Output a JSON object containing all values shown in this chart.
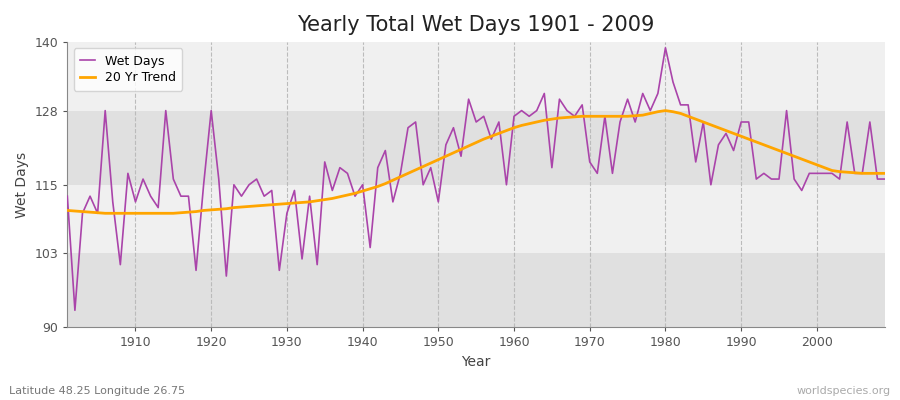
{
  "title": "Yearly Total Wet Days 1901 - 2009",
  "xlabel": "Year",
  "ylabel": "Wet Days",
  "subtitle": "Latitude 48.25 Longitude 26.75",
  "watermark": "worldspecies.org",
  "ylim": [
    90,
    140
  ],
  "yticks": [
    90,
    103,
    115,
    128,
    140
  ],
  "line_color": "#AA44AA",
  "trend_color": "#FFA500",
  "bg_color": "#FFFFFF",
  "band_color_light": "#F0F0F0",
  "band_color_dark": "#E0E0E0",
  "years": [
    1901,
    1902,
    1903,
    1904,
    1905,
    1906,
    1907,
    1908,
    1909,
    1910,
    1911,
    1912,
    1913,
    1914,
    1915,
    1916,
    1917,
    1918,
    1919,
    1920,
    1921,
    1922,
    1923,
    1924,
    1925,
    1926,
    1927,
    1928,
    1929,
    1930,
    1931,
    1932,
    1933,
    1934,
    1935,
    1936,
    1937,
    1938,
    1939,
    1940,
    1941,
    1942,
    1943,
    1944,
    1945,
    1946,
    1947,
    1948,
    1949,
    1950,
    1951,
    1952,
    1953,
    1954,
    1955,
    1956,
    1957,
    1958,
    1959,
    1960,
    1961,
    1962,
    1963,
    1964,
    1965,
    1966,
    1967,
    1968,
    1969,
    1970,
    1971,
    1972,
    1973,
    1974,
    1975,
    1976,
    1977,
    1978,
    1979,
    1980,
    1981,
    1982,
    1983,
    1984,
    1985,
    1986,
    1987,
    1988,
    1989,
    1990,
    1991,
    1992,
    1993,
    1994,
    1995,
    1996,
    1997,
    1998,
    1999,
    2000,
    2001,
    2002,
    2003,
    2004,
    2005,
    2006,
    2007,
    2008,
    2009
  ],
  "wet_days": [
    113,
    93,
    110,
    113,
    110,
    128,
    112,
    101,
    117,
    112,
    116,
    113,
    111,
    128,
    116,
    113,
    113,
    100,
    115,
    128,
    116,
    99,
    115,
    113,
    115,
    116,
    113,
    114,
    100,
    110,
    114,
    102,
    113,
    101,
    119,
    114,
    118,
    117,
    113,
    115,
    104,
    118,
    121,
    112,
    117,
    125,
    126,
    115,
    118,
    112,
    122,
    125,
    120,
    130,
    126,
    127,
    123,
    126,
    115,
    127,
    128,
    127,
    128,
    131,
    118,
    130,
    128,
    127,
    129,
    119,
    117,
    127,
    117,
    126,
    130,
    126,
    131,
    128,
    131,
    139,
    133,
    129,
    129,
    119,
    126,
    115,
    122,
    124,
    121,
    126,
    126,
    116,
    117,
    116,
    116,
    128,
    116,
    114,
    117,
    117,
    117,
    117,
    116,
    126,
    117,
    117,
    126,
    116,
    116
  ],
  "trend": [
    110.5,
    110.4,
    110.3,
    110.2,
    110.1,
    110.0,
    110.0,
    110.0,
    110.0,
    110.0,
    110.0,
    110.0,
    110.0,
    110.0,
    110.0,
    110.1,
    110.2,
    110.3,
    110.5,
    110.6,
    110.7,
    110.8,
    111.0,
    111.1,
    111.2,
    111.3,
    111.4,
    111.5,
    111.6,
    111.7,
    111.8,
    111.9,
    112.0,
    112.2,
    112.4,
    112.6,
    112.9,
    113.2,
    113.5,
    113.9,
    114.3,
    114.7,
    115.2,
    115.8,
    116.4,
    117.0,
    117.6,
    118.2,
    118.8,
    119.4,
    120.0,
    120.6,
    121.2,
    121.8,
    122.4,
    123.0,
    123.5,
    124.0,
    124.5,
    125.0,
    125.4,
    125.7,
    126.0,
    126.3,
    126.5,
    126.7,
    126.8,
    126.9,
    127.0,
    127.0,
    127.0,
    127.0,
    127.0,
    127.0,
    127.0,
    127.1,
    127.2,
    127.5,
    127.8,
    128.0,
    127.8,
    127.5,
    127.0,
    126.5,
    126.0,
    125.5,
    125.0,
    124.5,
    124.0,
    123.5,
    123.0,
    122.5,
    122.0,
    121.5,
    121.0,
    120.5,
    120.0,
    119.5,
    119.0,
    118.5,
    118.0,
    117.5,
    117.3,
    117.2,
    117.1,
    117.0,
    117.0,
    117.0,
    117.0
  ]
}
